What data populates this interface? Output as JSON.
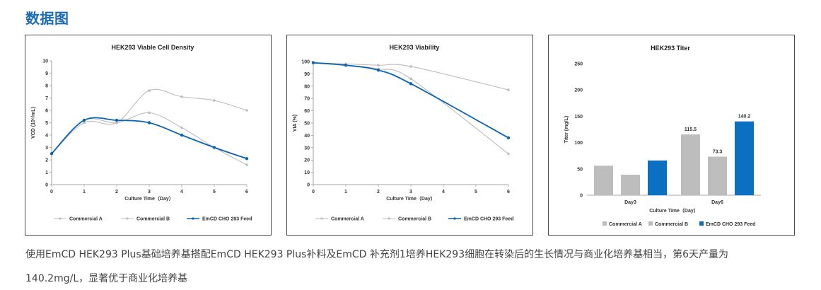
{
  "page": {
    "heading": "数据图",
    "caption_line1": "使用EmCD HEK293 Plus基础培养基搭配EmCD HEK293 Plus补料及EmCD 补充剂1培养HEK293细胞在转染后的生长情况与商业化培养基相当，第6天产量为",
    "caption_line2": "140.2mg/L，显著优于商业化培养基"
  },
  "chart_data": [
    {
      "type": "line",
      "title": "HEK293 Viable Cell Density",
      "xlabel": "Culture Time（Day）",
      "ylabel": "VCD (10⁶/mL)",
      "x": [
        0,
        1,
        2,
        3,
        4,
        5,
        6
      ],
      "xlim": [
        0,
        6
      ],
      "ylim": [
        0,
        10
      ],
      "xticks": [
        "0",
        "1",
        "2",
        "3",
        "4",
        "5",
        "6"
      ],
      "yticks": [
        "0",
        "1",
        "2",
        "3",
        "4",
        "5",
        "6",
        "7",
        "8",
        "9",
        "10"
      ],
      "legend_position": "bottom",
      "series": [
        {
          "name": "Commercial A",
          "color": "#bdbdbd",
          "values": [
            2.5,
            5.0,
            5.0,
            7.6,
            7.1,
            6.8,
            6.0
          ]
        },
        {
          "name": "Commercial B",
          "color": "#bdbdbd",
          "values": [
            2.5,
            5.2,
            5.0,
            5.8,
            4.6,
            3.0,
            1.6
          ]
        },
        {
          "name": "EmCD CHO 293 Feed",
          "color": "#0b63b5",
          "values": [
            2.5,
            5.2,
            5.2,
            5.0,
            4.0,
            3.0,
            2.1
          ]
        }
      ]
    },
    {
      "type": "line",
      "title": "HEK293  Viability",
      "xlabel": "Culture Time（Day）",
      "ylabel": "VIA (%)",
      "x": [
        0,
        1,
        2,
        3,
        6
      ],
      "xlim": [
        0,
        6
      ],
      "ylim": [
        0,
        100
      ],
      "xticks": [
        "0",
        "1",
        "2",
        "3",
        "4",
        "5",
        "6"
      ],
      "yticks": [
        "0",
        "10",
        "20",
        "30",
        "40",
        "50",
        "60",
        "70",
        "80",
        "90",
        "100"
      ],
      "legend_position": "bottom",
      "series": [
        {
          "name": "Commercial A",
          "color": "#bdbdbd",
          "values": [
            99,
            98,
            97,
            96,
            77
          ]
        },
        {
          "name": "Commercial B",
          "color": "#bdbdbd",
          "values": [
            99,
            97,
            94,
            86,
            25
          ]
        },
        {
          "name": "EmCD CHO 293 Feed",
          "color": "#0b63b5",
          "values": [
            99,
            97,
            93,
            82,
            38
          ]
        }
      ]
    },
    {
      "type": "bar",
      "title": "HEK293  Titer",
      "xlabel": "Culture Time（Day）",
      "ylabel": "Titer  (mg/L)",
      "categories": [
        "Day3",
        "Day6"
      ],
      "ylim": [
        0,
        250
      ],
      "yticks": [
        "0",
        "50",
        "100",
        "150",
        "200",
        "250"
      ],
      "legend_position": "bottom",
      "series": [
        {
          "name": "Commercial A",
          "color": "#bdbdbd",
          "values": [
            56,
            115.5
          ],
          "labels": [
            "",
            "115.5"
          ]
        },
        {
          "name": "Commercial B",
          "color": "#bdbdbd",
          "values": [
            39,
            73.3
          ],
          "labels": [
            "",
            "73.3"
          ]
        },
        {
          "name": "EmCD CHO 293 Feed",
          "color": "#0b6fc2",
          "values": [
            66,
            140.2
          ],
          "labels": [
            "",
            "140.2"
          ]
        }
      ]
    }
  ]
}
